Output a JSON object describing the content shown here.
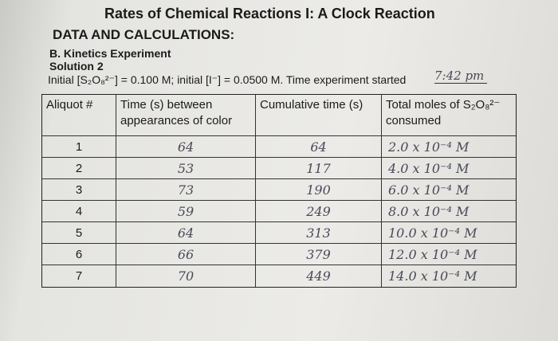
{
  "header": {
    "title": "Rates of Chemical Reactions I: A Clock Reaction",
    "section": "DATA AND CALCULATIONS:",
    "subsection": "B. Kinetics Experiment",
    "solution": "Solution 2",
    "initial": "Initial [S₂O₈²⁻] = 0.100 M; initial [I⁻] = 0.0500 M. Time experiment started",
    "start_time": "7:42 pm"
  },
  "table": {
    "columns": [
      "Aliquot #",
      "Time (s) between appearances of color",
      "Cumulative time (s)",
      "Total moles of S₂O₈²⁻ consumed"
    ],
    "rows": [
      [
        "1",
        "64",
        "64",
        "2.0 x 10⁻⁴ M"
      ],
      [
        "2",
        "53",
        "117",
        "4.0 x 10⁻⁴ M"
      ],
      [
        "3",
        "73",
        "190",
        "6.0 x 10⁻⁴ M"
      ],
      [
        "4",
        "59",
        "249",
        "8.0 x 10⁻⁴ M"
      ],
      [
        "5",
        "64",
        "313",
        "10.0 x 10⁻⁴ M"
      ],
      [
        "6",
        "66",
        "379",
        "12.0 x 10⁻⁴ M"
      ],
      [
        "7",
        "70",
        "449",
        "14.0 x 10⁻⁴ M"
      ]
    ]
  }
}
